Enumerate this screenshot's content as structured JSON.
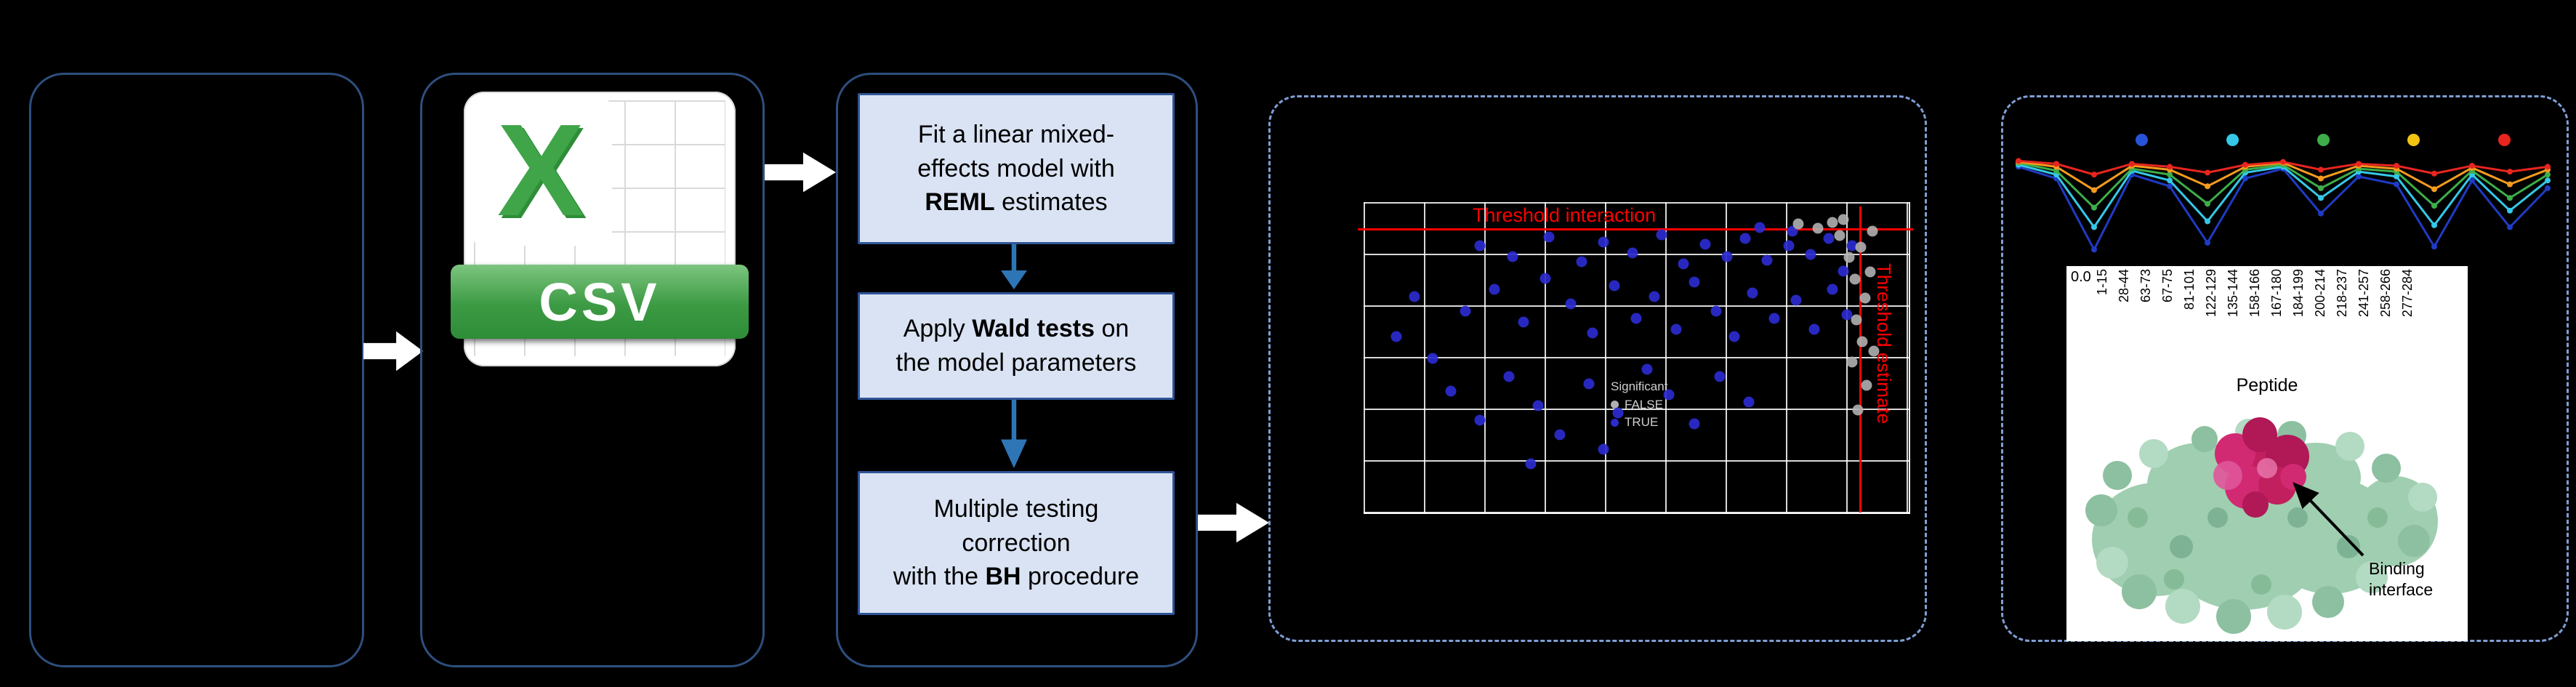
{
  "colors": {
    "background": "#000000",
    "box_border": "#2e4f7e",
    "dashed_border": "#7f9fd4",
    "process_fill": "#dae3f3",
    "process_border": "#2f5597",
    "arrow_white": "#ffffff",
    "arrow_blue": "#2e75b6",
    "threshold_red": "#ff0000",
    "point_blue": "#2b2bd0",
    "point_gray": "#b0b0b0"
  },
  "csv_icon": {
    "x_letter": "X",
    "label": "CSV"
  },
  "process": {
    "step1": {
      "line1": "Fit a linear mixed-",
      "line2": "effects model with",
      "line3_bold": "REML",
      "line3_rest": " estimates"
    },
    "step2": {
      "line1_pre": "Apply ",
      "line1_bold": "Wald tests",
      "line1_post": " on",
      "line2": "the model parameters"
    },
    "step3": {
      "line1": "Multiple testing",
      "line2": "correction",
      "line3_pre": "with the ",
      "line3_bold": "BH",
      "line3_post": " procedure"
    }
  },
  "volcano": {
    "type": "scatter",
    "title_threshold_interaction": "Threshold interaction",
    "label_threshold_estimate": "Threshold estimate",
    "legend": {
      "title": "Significant",
      "items": [
        {
          "label": "FALSE",
          "color": "#b0b0b0"
        },
        {
          "label": "TRUE",
          "color": "#2b2bd0"
        }
      ]
    },
    "points_blue": [
      [
        45,
        185
      ],
      [
        70,
        130
      ],
      [
        95,
        215
      ],
      [
        120,
        260
      ],
      [
        140,
        150
      ],
      [
        160,
        60
      ],
      [
        160,
        300
      ],
      [
        180,
        120
      ],
      [
        200,
        240
      ],
      [
        205,
        75
      ],
      [
        220,
        165
      ],
      [
        230,
        360
      ],
      [
        240,
        280
      ],
      [
        250,
        105
      ],
      [
        255,
        48
      ],
      [
        270,
        320
      ],
      [
        285,
        140
      ],
      [
        300,
        82
      ],
      [
        310,
        250
      ],
      [
        315,
        180
      ],
      [
        330,
        55
      ],
      [
        330,
        340
      ],
      [
        345,
        115
      ],
      [
        350,
        290
      ],
      [
        370,
        70
      ],
      [
        375,
        160
      ],
      [
        390,
        230
      ],
      [
        400,
        130
      ],
      [
        410,
        45
      ],
      [
        420,
        265
      ],
      [
        430,
        175
      ],
      [
        440,
        85
      ],
      [
        455,
        110
      ],
      [
        455,
        305
      ],
      [
        470,
        58
      ],
      [
        485,
        150
      ],
      [
        490,
        240
      ],
      [
        500,
        75
      ],
      [
        510,
        185
      ],
      [
        525,
        50
      ],
      [
        530,
        275
      ],
      [
        535,
        125
      ],
      [
        545,
        35
      ],
      [
        555,
        80
      ],
      [
        565,
        160
      ],
      [
        585,
        60
      ],
      [
        590,
        40
      ],
      [
        595,
        135
      ],
      [
        615,
        72
      ],
      [
        620,
        175
      ],
      [
        640,
        50
      ],
      [
        645,
        120
      ],
      [
        660,
        95
      ],
      [
        665,
        155
      ],
      [
        672,
        60
      ]
    ],
    "points_gray": [
      [
        598,
        30
      ],
      [
        625,
        36
      ],
      [
        645,
        28
      ],
      [
        655,
        46
      ],
      [
        660,
        24
      ],
      [
        668,
        76
      ],
      [
        672,
        220
      ],
      [
        676,
        106
      ],
      [
        678,
        162
      ],
      [
        680,
        286
      ],
      [
        684,
        62
      ],
      [
        686,
        192
      ],
      [
        690,
        132
      ],
      [
        692,
        252
      ],
      [
        697,
        96
      ],
      [
        700,
        40
      ],
      [
        702,
        205
      ]
    ]
  },
  "peptide_chart": {
    "type": "line",
    "y_tick_label": "0.0",
    "xlabel": "Peptide",
    "categories": [
      "1-15",
      "28-44",
      "63-73",
      "67-75",
      "81-101",
      "122-129",
      "135-144",
      "158-166",
      "167-180",
      "184-199",
      "200-214",
      "218-237",
      "241-257",
      "258-266",
      "277-284"
    ],
    "legend_dot_colors": [
      "#2653d9",
      "#35c8e8",
      "#3dae49",
      "#f2c40f",
      "#e8251f"
    ],
    "series": [
      {
        "name": "blue",
        "color": "#1f3bc4",
        "values": [
          0.1,
          0.22,
          0.95,
          0.18,
          0.3,
          0.88,
          0.22,
          0.12,
          0.58,
          0.2,
          0.28,
          0.92,
          0.24,
          0.72,
          0.32
        ]
      },
      {
        "name": "cyan",
        "color": "#35c8e8",
        "values": [
          0.08,
          0.18,
          0.72,
          0.14,
          0.24,
          0.66,
          0.16,
          0.1,
          0.42,
          0.15,
          0.2,
          0.7,
          0.18,
          0.55,
          0.24
        ]
      },
      {
        "name": "green",
        "color": "#3dae49",
        "values": [
          0.06,
          0.14,
          0.52,
          0.12,
          0.18,
          0.48,
          0.13,
          0.08,
          0.32,
          0.12,
          0.15,
          0.5,
          0.14,
          0.42,
          0.18
        ]
      },
      {
        "name": "orange",
        "color": "#f59b1e",
        "values": [
          0.05,
          0.1,
          0.34,
          0.09,
          0.13,
          0.3,
          0.1,
          0.06,
          0.22,
          0.09,
          0.12,
          0.33,
          0.11,
          0.28,
          0.13
        ]
      },
      {
        "name": "red",
        "color": "#e8251f",
        "values": [
          0.04,
          0.07,
          0.18,
          0.07,
          0.1,
          0.16,
          0.08,
          0.05,
          0.13,
          0.07,
          0.09,
          0.17,
          0.09,
          0.15,
          0.1
        ]
      }
    ]
  },
  "structure": {
    "caption_line1": "Binding",
    "caption_line2": "interface",
    "surface_color": "#9fceb0",
    "interface_color": "#c21f5e"
  }
}
